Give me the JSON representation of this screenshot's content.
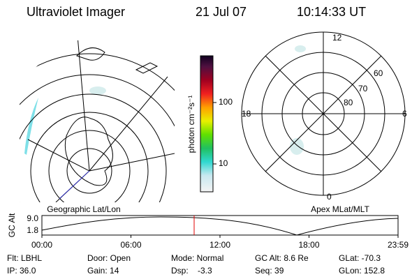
{
  "header": {
    "title": "Ultraviolet Imager",
    "date": "21 Jul 07",
    "time": "10:14:33 UT"
  },
  "colorbar": {
    "label": "photon cm⁻²s⁻¹",
    "ticks": [
      "100",
      "10"
    ]
  },
  "polar_plot": {
    "mlt_labels": [
      "12",
      "18",
      "6",
      "0"
    ],
    "lat_labels": [
      "60",
      "70",
      "80"
    ]
  },
  "altitude_plot": {
    "left_label": "Geographic Lat/Lon",
    "right_label": "Apex MLat/MLT",
    "y_label": "GC Alt",
    "y_ticks": [
      "9.0",
      "1.8"
    ],
    "x_ticks": [
      "00:00",
      "06:00",
      "12:00",
      "18:00",
      "23:59"
    ]
  },
  "status": {
    "rows": [
      [
        "Flt: LBHL",
        "Door: Open",
        "Mode: Normal",
        "GC Alt: 8.6 Re",
        "GLat: -70.3"
      ],
      [
        "IP: 36.0",
        "Gain: 14",
        "Dsp:    -3.3",
        "Seq: 39",
        "GLon: 152.8"
      ]
    ]
  }
}
